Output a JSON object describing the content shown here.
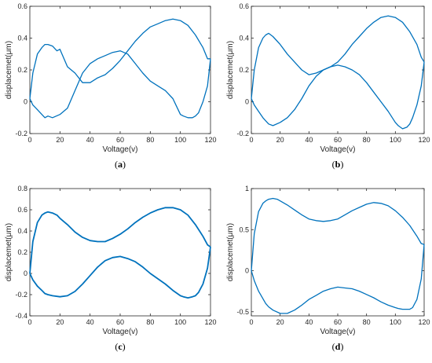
{
  "chart_data": [
    {
      "type": "line",
      "panel_label": "(a)",
      "panel_letter": "a",
      "xlabel": "Voltage(v)",
      "ylabel": "displacemet(μm)",
      "xlim": [
        0,
        120
      ],
      "ylim": [
        -0.2,
        0.6
      ],
      "xticks": [
        "0",
        "20",
        "40",
        "60",
        "80",
        "100",
        "120"
      ],
      "yticks": [
        "-0.2",
        "0",
        "0.2",
        "0.4",
        "0.6"
      ],
      "grid": false,
      "line_color": "#0072BD",
      "series": [
        {
          "name": "",
          "x": [
            0,
            2,
            5,
            8,
            10,
            12,
            15,
            18,
            20,
            25,
            30,
            35,
            40,
            45,
            50,
            55,
            60,
            65,
            70,
            75,
            80,
            85,
            90,
            95,
            100,
            105,
            110,
            115,
            118,
            120
          ],
          "y": [
            0.02,
            0.18,
            0.3,
            0.34,
            0.36,
            0.36,
            0.35,
            0.32,
            0.33,
            0.22,
            0.18,
            0.12,
            0.12,
            0.15,
            0.17,
            0.21,
            0.26,
            0.32,
            0.38,
            0.43,
            0.47,
            0.49,
            0.51,
            0.52,
            0.51,
            0.48,
            0.42,
            0.34,
            0.27,
            0.27
          ]
        },
        {
          "name": "",
          "x": [
            120,
            118,
            115,
            112,
            110,
            108,
            105,
            102,
            100,
            95,
            90,
            85,
            80,
            75,
            70,
            65,
            60,
            55,
            50,
            45,
            40,
            35,
            30,
            25,
            20,
            15,
            12,
            10,
            8,
            5,
            2,
            0
          ],
          "y": [
            0.27,
            0.1,
            0.0,
            -0.07,
            -0.09,
            -0.1,
            -0.1,
            -0.09,
            -0.08,
            0.02,
            0.07,
            0.1,
            0.13,
            0.18,
            0.24,
            0.3,
            0.32,
            0.31,
            0.29,
            0.27,
            0.24,
            0.18,
            0.07,
            -0.04,
            -0.08,
            -0.1,
            -0.09,
            -0.1,
            -0.08,
            -0.05,
            -0.02,
            0.02
          ]
        }
      ]
    },
    {
      "type": "line",
      "panel_label": "(b)",
      "panel_letter": "b",
      "xlabel": "Voltage(v)",
      "ylabel": "displacemet(μm)",
      "xlim": [
        0,
        120
      ],
      "ylim": [
        -0.2,
        0.6
      ],
      "xticks": [
        "0",
        "20",
        "40",
        "60",
        "80",
        "100",
        "120"
      ],
      "yticks": [
        "-0.2",
        "0",
        "0.2",
        "0.4",
        "0.6"
      ],
      "grid": false,
      "line_color": "#0072BD",
      "series": [
        {
          "name": "",
          "x": [
            0,
            2,
            5,
            8,
            10,
            12,
            15,
            18,
            20,
            25,
            30,
            35,
            40,
            45,
            50,
            55,
            60,
            65,
            70,
            75,
            80,
            85,
            90,
            95,
            100,
            105,
            110,
            115,
            118,
            120
          ],
          "y": [
            0.02,
            0.2,
            0.34,
            0.4,
            0.42,
            0.43,
            0.41,
            0.38,
            0.36,
            0.3,
            0.25,
            0.2,
            0.17,
            0.18,
            0.2,
            0.22,
            0.25,
            0.3,
            0.36,
            0.41,
            0.46,
            0.5,
            0.53,
            0.54,
            0.53,
            0.5,
            0.44,
            0.36,
            0.28,
            0.25
          ]
        },
        {
          "name": "",
          "x": [
            120,
            118,
            115,
            112,
            110,
            108,
            105,
            102,
            100,
            95,
            90,
            85,
            80,
            75,
            70,
            65,
            60,
            55,
            50,
            45,
            40,
            35,
            30,
            25,
            20,
            15,
            12,
            10,
            8,
            5,
            2,
            0
          ],
          "y": [
            0.25,
            0.1,
            -0.02,
            -0.1,
            -0.14,
            -0.16,
            -0.17,
            -0.15,
            -0.13,
            -0.06,
            0.0,
            0.06,
            0.12,
            0.17,
            0.2,
            0.22,
            0.23,
            0.22,
            0.2,
            0.16,
            0.1,
            0.02,
            -0.05,
            -0.1,
            -0.13,
            -0.15,
            -0.14,
            -0.12,
            -0.1,
            -0.06,
            -0.02,
            0.02
          ]
        }
      ]
    },
    {
      "type": "line",
      "panel_label": "(c)",
      "panel_letter": "c",
      "xlabel": "Voltage(v)",
      "ylabel": "displacemet(μm)",
      "xlim": [
        0,
        120
      ],
      "ylim": [
        -0.4,
        0.8
      ],
      "xticks": [
        "0",
        "20",
        "40",
        "60",
        "80",
        "100",
        "120"
      ],
      "yticks": [
        "-0.4",
        "-0.2",
        "0",
        "0.2",
        "0.4",
        "0.6",
        "0.8"
      ],
      "grid": false,
      "line_color": "#0072BD",
      "series": [
        {
          "name": "",
          "x": [
            0,
            2,
            5,
            8,
            10,
            12,
            15,
            18,
            20,
            25,
            30,
            35,
            40,
            45,
            50,
            55,
            60,
            65,
            70,
            75,
            80,
            85,
            90,
            95,
            100,
            105,
            110,
            115,
            118,
            120
          ],
          "y": [
            0.0,
            0.3,
            0.48,
            0.55,
            0.57,
            0.58,
            0.57,
            0.55,
            0.52,
            0.46,
            0.39,
            0.34,
            0.31,
            0.3,
            0.3,
            0.33,
            0.37,
            0.42,
            0.48,
            0.53,
            0.57,
            0.6,
            0.62,
            0.62,
            0.6,
            0.55,
            0.46,
            0.35,
            0.27,
            0.25
          ]
        },
        {
          "name": "",
          "x": [
            120,
            118,
            115,
            112,
            110,
            108,
            105,
            102,
            100,
            95,
            90,
            85,
            80,
            75,
            70,
            65,
            60,
            55,
            50,
            45,
            40,
            35,
            30,
            25,
            20,
            15,
            12,
            10,
            8,
            5,
            2,
            0
          ],
          "y": [
            0.25,
            0.05,
            -0.1,
            -0.18,
            -0.21,
            -0.22,
            -0.23,
            -0.22,
            -0.21,
            -0.16,
            -0.1,
            -0.05,
            0.0,
            0.06,
            0.11,
            0.14,
            0.16,
            0.15,
            0.12,
            0.06,
            -0.02,
            -0.1,
            -0.17,
            -0.21,
            -0.22,
            -0.21,
            -0.2,
            -0.19,
            -0.16,
            -0.12,
            -0.06,
            0.0
          ]
        }
      ]
    },
    {
      "type": "line",
      "panel_label": "(d)",
      "panel_letter": "d",
      "xlabel": "Voltage(v)",
      "ylabel": "displacemet(μm)",
      "xlim": [
        0,
        120
      ],
      "ylim": [
        -0.55,
        1.0
      ],
      "xticks": [
        "0",
        "20",
        "40",
        "60",
        "80",
        "100",
        "120"
      ],
      "yticks": [
        "-0.5",
        "0",
        "0.5",
        "1"
      ],
      "grid": false,
      "line_color": "#0072BD",
      "series": [
        {
          "name": "",
          "x": [
            0,
            2,
            5,
            8,
            10,
            12,
            15,
            18,
            20,
            25,
            30,
            35,
            40,
            45,
            50,
            55,
            60,
            65,
            70,
            75,
            80,
            85,
            90,
            95,
            100,
            105,
            110,
            115,
            118,
            120
          ],
          "y": [
            0.0,
            0.45,
            0.72,
            0.82,
            0.85,
            0.87,
            0.88,
            0.87,
            0.85,
            0.8,
            0.74,
            0.68,
            0.63,
            0.61,
            0.6,
            0.61,
            0.63,
            0.68,
            0.73,
            0.77,
            0.81,
            0.83,
            0.82,
            0.79,
            0.73,
            0.65,
            0.55,
            0.42,
            0.33,
            0.32
          ]
        },
        {
          "name": "",
          "x": [
            120,
            118,
            115,
            112,
            110,
            108,
            105,
            102,
            100,
            95,
            90,
            85,
            80,
            75,
            70,
            65,
            60,
            55,
            50,
            45,
            40,
            35,
            30,
            25,
            20,
            15,
            12,
            10,
            8,
            5,
            2,
            0
          ],
          "y": [
            0.32,
            -0.1,
            -0.35,
            -0.45,
            -0.47,
            -0.47,
            -0.47,
            -0.46,
            -0.45,
            -0.42,
            -0.38,
            -0.33,
            -0.29,
            -0.25,
            -0.22,
            -0.21,
            -0.2,
            -0.22,
            -0.25,
            -0.3,
            -0.35,
            -0.42,
            -0.48,
            -0.52,
            -0.52,
            -0.48,
            -0.44,
            -0.4,
            -0.34,
            -0.25,
            -0.12,
            0.0
          ]
        }
      ]
    }
  ]
}
